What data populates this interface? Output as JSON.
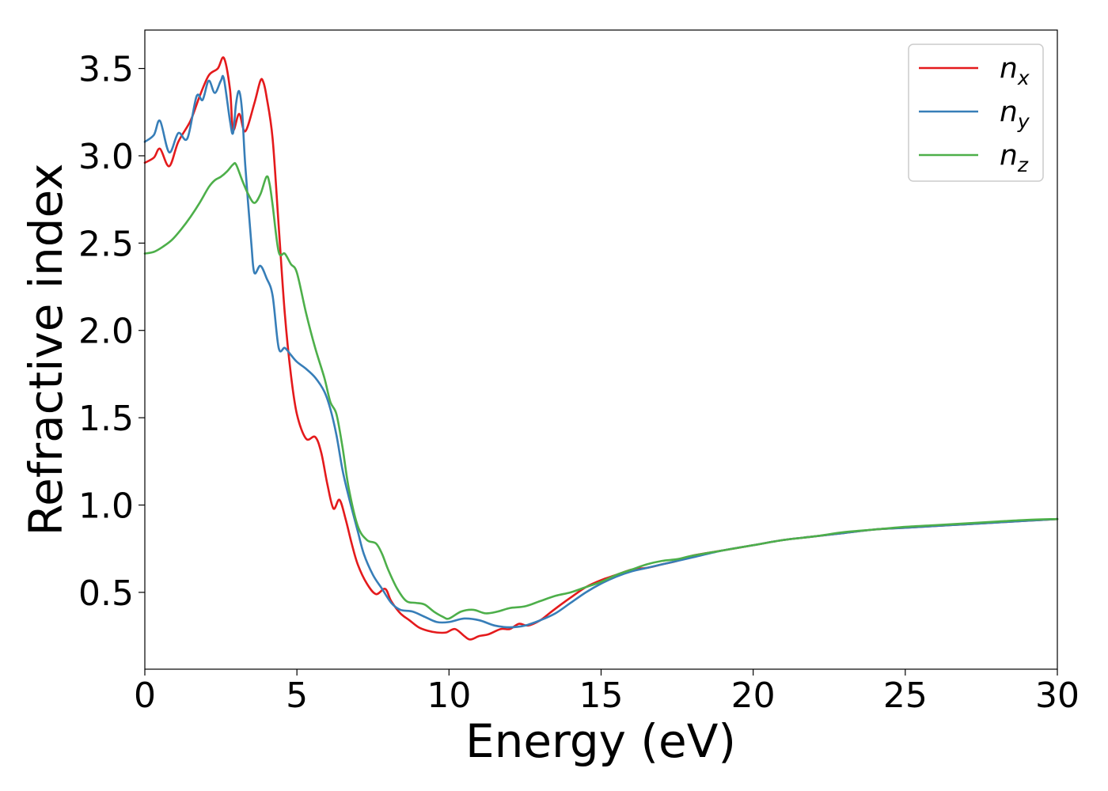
{
  "chart_data": {
    "type": "line",
    "title": "",
    "xlabel": "Energy (eV)",
    "ylabel": "Refractive index",
    "xlim": [
      0,
      30
    ],
    "ylim": [
      0.06,
      3.72
    ],
    "xticks": [
      0,
      5,
      10,
      15,
      20,
      25,
      30
    ],
    "xtick_labels": [
      "0",
      "5",
      "10",
      "15",
      "20",
      "25",
      "30"
    ],
    "yticks": [
      0.5,
      1.0,
      1.5,
      2.0,
      2.5,
      3.0,
      3.5
    ],
    "ytick_labels": [
      "0.5",
      "1.0",
      "1.5",
      "2.0",
      "2.5",
      "3.0",
      "3.5"
    ],
    "grid": false,
    "legend_position": "top-right",
    "series": [
      {
        "name": "n_x",
        "legend_base": "n",
        "legend_sub": "x",
        "color": "#e41a1c",
        "x": [
          0,
          0.3,
          0.5,
          0.8,
          1.1,
          1.5,
          1.8,
          2.1,
          2.4,
          2.6,
          2.8,
          2.9,
          3.1,
          3.3,
          3.6,
          3.8,
          3.9,
          4.0,
          4.2,
          4.4,
          4.6,
          4.8,
          5.0,
          5.3,
          5.6,
          5.8,
          6.0,
          6.2,
          6.4,
          6.6,
          6.8,
          7.0,
          7.3,
          7.6,
          7.9,
          8.1,
          8.4,
          8.7,
          9.0,
          9.3,
          9.6,
          9.9,
          10.2,
          10.5,
          10.7,
          11.0,
          11.3,
          11.7,
          12.0,
          12.3,
          12.6,
          13.0,
          13.3,
          13.6,
          14.0,
          14.5,
          15.0,
          15.5,
          16.0,
          16.5,
          17.0,
          17.5,
          18.0,
          19.0,
          20.0,
          21.0,
          22.0,
          23.0,
          24.0,
          25.0,
          26.0,
          27.0,
          28.0,
          29.0,
          30.0
        ],
        "y": [
          2.96,
          2.99,
          3.04,
          2.94,
          3.08,
          3.2,
          3.34,
          3.46,
          3.5,
          3.56,
          3.38,
          3.15,
          3.24,
          3.14,
          3.3,
          3.43,
          3.42,
          3.34,
          3.1,
          2.6,
          2.1,
          1.75,
          1.52,
          1.38,
          1.39,
          1.3,
          1.12,
          0.98,
          1.03,
          0.92,
          0.78,
          0.66,
          0.55,
          0.49,
          0.52,
          0.45,
          0.38,
          0.34,
          0.3,
          0.28,
          0.27,
          0.27,
          0.29,
          0.25,
          0.23,
          0.25,
          0.26,
          0.29,
          0.29,
          0.32,
          0.31,
          0.34,
          0.38,
          0.42,
          0.47,
          0.53,
          0.57,
          0.6,
          0.63,
          0.64,
          0.66,
          0.68,
          0.71,
          0.74,
          0.77,
          0.8,
          0.82,
          0.84,
          0.86,
          0.87,
          0.88,
          0.89,
          0.9,
          0.91,
          0.92
        ]
      },
      {
        "name": "n_y",
        "legend_base": "n",
        "legend_sub": "y",
        "color": "#377eb8",
        "x": [
          0,
          0.3,
          0.5,
          0.8,
          1.1,
          1.4,
          1.7,
          1.9,
          2.1,
          2.3,
          2.5,
          2.6,
          2.8,
          2.9,
          3.0,
          3.1,
          3.2,
          3.3,
          3.5,
          3.6,
          3.8,
          4.0,
          4.2,
          4.4,
          4.6,
          4.8,
          5.0,
          5.3,
          5.6,
          5.9,
          6.1,
          6.3,
          6.5,
          6.7,
          7.0,
          7.2,
          7.5,
          7.8,
          8.1,
          8.4,
          8.8,
          9.2,
          9.6,
          10.0,
          10.5,
          11.0,
          11.5,
          12.0,
          12.5,
          13.0,
          13.5,
          14.0,
          14.5,
          15.0,
          15.5,
          16.0,
          16.5,
          17.0,
          17.5,
          18.0,
          19.0,
          20.0,
          21.0,
          22.0,
          23.0,
          24.0,
          25.0,
          26.0,
          27.0,
          28.0,
          29.0,
          30.0
        ],
        "y": [
          3.08,
          3.12,
          3.2,
          3.02,
          3.13,
          3.1,
          3.34,
          3.32,
          3.43,
          3.36,
          3.43,
          3.44,
          3.2,
          3.13,
          3.3,
          3.37,
          3.25,
          2.95,
          2.5,
          2.33,
          2.37,
          2.3,
          2.2,
          1.9,
          1.9,
          1.86,
          1.82,
          1.78,
          1.73,
          1.65,
          1.55,
          1.4,
          1.2,
          1.05,
          0.85,
          0.72,
          0.6,
          0.52,
          0.44,
          0.4,
          0.39,
          0.36,
          0.33,
          0.33,
          0.35,
          0.34,
          0.31,
          0.3,
          0.31,
          0.34,
          0.38,
          0.44,
          0.5,
          0.55,
          0.59,
          0.62,
          0.64,
          0.66,
          0.68,
          0.7,
          0.74,
          0.77,
          0.8,
          0.82,
          0.84,
          0.86,
          0.87,
          0.88,
          0.89,
          0.9,
          0.91,
          0.92
        ]
      },
      {
        "name": "n_z",
        "legend_base": "n",
        "legend_sub": "z",
        "color": "#4daf4a",
        "x": [
          0,
          0.3,
          0.6,
          0.9,
          1.2,
          1.5,
          1.8,
          2.1,
          2.3,
          2.5,
          2.7,
          2.9,
          3.0,
          3.2,
          3.4,
          3.6,
          3.8,
          4.0,
          4.1,
          4.2,
          4.4,
          4.6,
          4.8,
          5.0,
          5.3,
          5.6,
          5.9,
          6.1,
          6.3,
          6.5,
          6.7,
          7.0,
          7.3,
          7.6,
          7.8,
          8.0,
          8.3,
          8.6,
          8.9,
          9.2,
          9.5,
          9.8,
          10.0,
          10.4,
          10.8,
          11.2,
          11.6,
          12.0,
          12.5,
          13.0,
          13.5,
          14.0,
          14.5,
          15.0,
          15.5,
          16.0,
          16.5,
          17.0,
          17.5,
          18.0,
          19.0,
          20.0,
          21.0,
          22.0,
          23.0,
          24.0,
          25.0,
          26.0,
          27.0,
          28.0,
          29.0,
          30.0
        ],
        "y": [
          2.44,
          2.45,
          2.48,
          2.52,
          2.58,
          2.65,
          2.73,
          2.82,
          2.86,
          2.88,
          2.91,
          2.95,
          2.95,
          2.86,
          2.78,
          2.73,
          2.78,
          2.88,
          2.84,
          2.72,
          2.45,
          2.44,
          2.38,
          2.33,
          2.1,
          1.9,
          1.73,
          1.59,
          1.52,
          1.33,
          1.1,
          0.88,
          0.8,
          0.78,
          0.72,
          0.63,
          0.52,
          0.45,
          0.44,
          0.43,
          0.39,
          0.36,
          0.35,
          0.39,
          0.4,
          0.38,
          0.39,
          0.41,
          0.42,
          0.45,
          0.48,
          0.5,
          0.53,
          0.56,
          0.6,
          0.63,
          0.66,
          0.68,
          0.69,
          0.71,
          0.74,
          0.77,
          0.8,
          0.82,
          0.845,
          0.86,
          0.875,
          0.885,
          0.895,
          0.905,
          0.915,
          0.92
        ]
      }
    ]
  }
}
